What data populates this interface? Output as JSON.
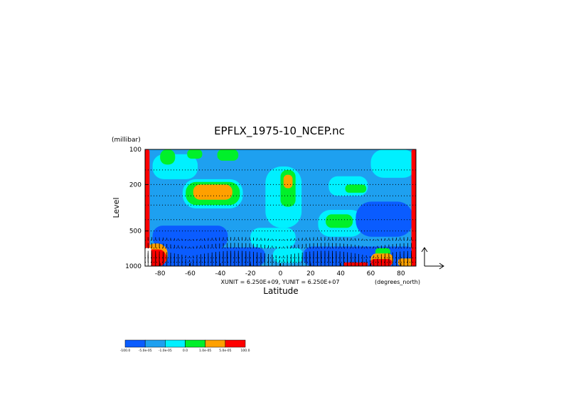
{
  "chart_data": {
    "type": "heatmap",
    "title": "EPFLX_1975-10_NCEP.nc",
    "ylabel": "Level",
    "yunits": "(millibar)",
    "xlabel": "Latitude",
    "xunits": "(degrees_north)",
    "vector_scale": "XUNIT = 6.250E+09, YUNIT = 6.250E+07",
    "xlim": [
      -90,
      90
    ],
    "ylim": [
      1000,
      100
    ],
    "y_scale": "log",
    "x_ticks": [
      "-80",
      "-60",
      "-40",
      "-20",
      "0",
      "20",
      "40",
      "60",
      "80"
    ],
    "x_tick_values": [
      -80,
      -60,
      -40,
      -20,
      0,
      20,
      40,
      60,
      80
    ],
    "y_ticks": [
      "100",
      "200",
      "500",
      "1000"
    ],
    "y_tick_values": [
      100,
      200,
      500,
      1000
    ],
    "pressure_levels": [
      1000,
      925,
      850,
      700,
      600,
      500,
      400,
      300,
      250,
      200,
      150,
      100
    ],
    "colorbar": {
      "labels": [
        "-100.0",
        "-5.0e-05",
        "-1.0e-05",
        "0.0",
        "1.0e-05",
        "5.0e-05",
        "100.0"
      ],
      "colors": [
        "#0a5cff",
        "#1ea0f0",
        "#00f0ff",
        "#00f02a",
        "#ffa000",
        "#ff0000"
      ]
    },
    "levels": {
      "background": "#1ea0f0",
      "strong_negative": "#0a5cff",
      "weak_negative": "#00f0ff",
      "weak_positive": "#00f02a",
      "positive": "#ffa000",
      "strong_positive": "#ff0000"
    },
    "regions": [
      {
        "class": "weak_negative",
        "lat": [
          -85,
          -55
        ],
        "p": [
          110,
          180
        ]
      },
      {
        "class": "weak_positive",
        "lat": [
          -80,
          -70
        ],
        "p": [
          100,
          135
        ]
      },
      {
        "class": "weak_positive",
        "lat": [
          -62,
          -52
        ],
        "p": [
          100,
          120
        ]
      },
      {
        "class": "weak_positive",
        "lat": [
          -42,
          -28
        ],
        "p": [
          100,
          125
        ]
      },
      {
        "class": "weak_negative",
        "lat": [
          -65,
          -25
        ],
        "p": [
          180,
          320
        ]
      },
      {
        "class": "weak_positive",
        "lat": [
          -63,
          -27
        ],
        "p": [
          190,
          300
        ]
      },
      {
        "class": "positive",
        "lat": [
          -58,
          -32
        ],
        "p": [
          200,
          270
        ]
      },
      {
        "class": "weak_negative",
        "lat": [
          -10,
          14
        ],
        "p": [
          140,
          470
        ]
      },
      {
        "class": "weak_positive",
        "lat": [
          0,
          10
        ],
        "p": [
          150,
          310
        ]
      },
      {
        "class": "positive",
        "lat": [
          2,
          8
        ],
        "p": [
          165,
          215
        ]
      },
      {
        "class": "weak_negative",
        "lat": [
          32,
          58
        ],
        "p": [
          170,
          250
        ]
      },
      {
        "class": "weak_positive",
        "lat": [
          43,
          57
        ],
        "p": [
          200,
          235
        ]
      },
      {
        "class": "weak_negative",
        "lat": [
          60,
          90
        ],
        "p": [
          100,
          175
        ]
      },
      {
        "class": "weak_negative",
        "lat": [
          25,
          55
        ],
        "p": [
          330,
          560
        ]
      },
      {
        "class": "weak_positive",
        "lat": [
          30,
          48
        ],
        "p": [
          360,
          470
        ]
      },
      {
        "class": "weak_negative",
        "lat": [
          -20,
          10
        ],
        "p": [
          470,
          700
        ]
      },
      {
        "class": "strong_negative",
        "lat": [
          -85,
          -35
        ],
        "p": [
          450,
          700
        ]
      },
      {
        "class": "strong_negative",
        "lat": [
          50,
          88
        ],
        "p": [
          280,
          560
        ]
      },
      {
        "class": "strong_negative",
        "lat": [
          -85,
          -10
        ],
        "p": [
          690,
          1000
        ]
      },
      {
        "class": "strong_negative",
        "lat": [
          15,
          90
        ],
        "p": [
          680,
          1000
        ]
      },
      {
        "class": "weak_negative",
        "lat": [
          -5,
          15
        ],
        "p": [
          700,
          940
        ]
      },
      {
        "class": "weak_positive",
        "lat": [
          63,
          73
        ],
        "p": [
          700,
          820
        ]
      },
      {
        "class": "positive",
        "lat": [
          60,
          75
        ],
        "p": [
          780,
          1000
        ]
      },
      {
        "class": "positive",
        "lat": [
          78,
          90
        ],
        "p": [
          860,
          1000
        ]
      },
      {
        "class": "strong_positive",
        "lat": [
          60,
          74
        ],
        "p": [
          870,
          1000
        ]
      },
      {
        "class": "strong_positive",
        "lat": [
          42,
          58
        ],
        "p": [
          930,
          1000
        ]
      },
      {
        "class": "positive",
        "lat": [
          -90,
          -75
        ],
        "p": [
          640,
          1000
        ]
      },
      {
        "class": "strong_positive",
        "lat": [
          -90,
          -76
        ],
        "p": [
          720,
          1000
        ]
      },
      {
        "class": "strong_positive",
        "lat": [
          -90,
          -87
        ],
        "p": [
          100,
          1000
        ]
      },
      {
        "class": "strong_positive",
        "lat": [
          87,
          90
        ],
        "p": [
          100,
          1000
        ]
      }
    ]
  }
}
